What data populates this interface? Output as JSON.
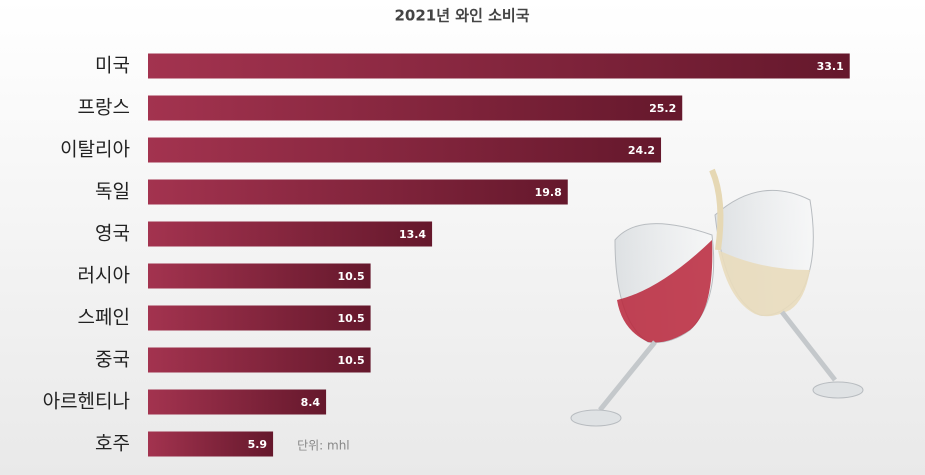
{
  "chart_data": {
    "type": "bar",
    "orientation": "horizontal",
    "title": "2021년 와인 소비국",
    "categories": [
      "미국",
      "프랑스",
      "이탈리아",
      "독일",
      "영국",
      "러시아",
      "스페인",
      "중국",
      "아르헨티나",
      "호주"
    ],
    "values": [
      33.1,
      25.2,
      24.2,
      19.8,
      13.4,
      10.5,
      10.5,
      10.5,
      8.4,
      5.9
    ],
    "color": "#8a2440",
    "unit_note": "단위: mhl"
  }
}
